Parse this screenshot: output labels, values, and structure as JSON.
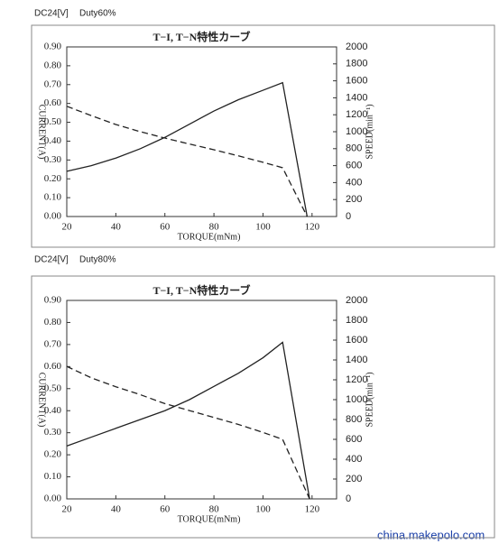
{
  "watermark": "china.makepolo.com",
  "chart_data": [
    {
      "type": "line",
      "annotations": [
        "DC24[V]",
        "Duty60%"
      ],
      "title": "T−I, T−N特性カーブ",
      "xlabel": "TORQUE(mNm)",
      "ylabel": "CURRENT(A)",
      "y2label": "SPEED(min⁻¹)",
      "x": [
        20,
        30,
        40,
        50,
        60,
        70,
        80,
        90,
        100,
        108,
        118
      ],
      "xlim": [
        20,
        130
      ],
      "xticks": [
        20,
        40,
        60,
        80,
        100,
        120
      ],
      "ylim": [
        0,
        0.9
      ],
      "yticks": [
        {
          "value": 0,
          "label": "0.00"
        },
        {
          "value": 0.1,
          "label": "0.10"
        },
        {
          "value": 0.2,
          "label": "0.20"
        },
        {
          "value": 0.3,
          "label": "0.30"
        },
        {
          "value": 0.4,
          "label": "0.40"
        },
        {
          "value": 0.5,
          "label": "0.50"
        },
        {
          "value": 0.6,
          "label": "0.60"
        },
        {
          "value": 0.7,
          "label": "0.70"
        },
        {
          "value": 0.8,
          "label": "0.80"
        },
        {
          "value": 0.9,
          "label": "0.90"
        }
      ],
      "y2lim": [
        0,
        2000
      ],
      "y2ticks": [
        0,
        200,
        400,
        600,
        800,
        1000,
        1200,
        1400,
        1600,
        1800,
        2000
      ],
      "series": [
        {
          "color": "#222222",
          "line_style": "solid",
          "values": [
            0.24,
            0.27,
            0.31,
            0.36,
            0.42,
            0.49,
            0.56,
            0.62,
            0.67,
            0.71,
            0
          ]
        },
        {
          "color": "#222222",
          "line_style": "dashed",
          "axis": "y2",
          "values": [
            1300,
            1190,
            1085,
            1000,
            925,
            855,
            787,
            715,
            640,
            575,
            0
          ]
        }
      ]
    },
    {
      "type": "line",
      "annotations": [
        "DC24[V]",
        "Duty80%"
      ],
      "title": "T−I, T−N特性カーブ",
      "xlabel": "TORQUE(mNm)",
      "ylabel": "CURRENT(A)",
      "y2label": "SPEED(min⁻¹)",
      "x": [
        20,
        30,
        40,
        50,
        60,
        70,
        80,
        90,
        100,
        108,
        119
      ],
      "xlim": [
        20,
        130
      ],
      "xticks": [
        20,
        40,
        60,
        80,
        100,
        120
      ],
      "ylim": [
        0,
        0.9
      ],
      "yticks": [
        {
          "value": 0,
          "label": "0.00"
        },
        {
          "value": 0.1,
          "label": "0.10"
        },
        {
          "value": 0.2,
          "label": "0.20"
        },
        {
          "value": 0.3,
          "label": "0.30"
        },
        {
          "value": 0.4,
          "label": "0.40"
        },
        {
          "value": 0.5,
          "label": "0.50"
        },
        {
          "value": 0.6,
          "label": "0.60"
        },
        {
          "value": 0.7,
          "label": "0.70"
        },
        {
          "value": 0.8,
          "label": "0.80"
        },
        {
          "value": 0.9,
          "label": "0.90"
        }
      ],
      "y2lim": [
        0,
        2000
      ],
      "y2ticks": [
        0,
        200,
        400,
        600,
        800,
        1000,
        1200,
        1400,
        1600,
        1800,
        2000
      ],
      "series": [
        {
          "color": "#222222",
          "line_style": "solid",
          "values": [
            0.24,
            0.28,
            0.32,
            0.36,
            0.4,
            0.45,
            0.51,
            0.57,
            0.64,
            0.71,
            0
          ]
        },
        {
          "color": "#222222",
          "line_style": "dashed",
          "axis": "y2",
          "values": [
            1335,
            1220,
            1130,
            1050,
            960,
            890,
            820,
            750,
            670,
            600,
            0
          ]
        }
      ]
    }
  ]
}
